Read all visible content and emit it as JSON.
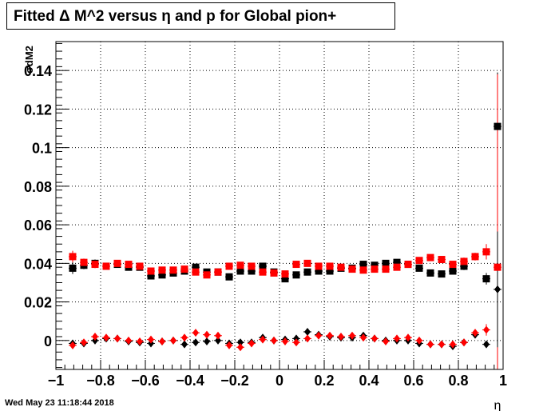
{
  "title": "Fitted Δ M^2 versus η and p for Global pion+",
  "timestamp": "Wed May 23 11:18:44 2018",
  "chart_data": {
    "type": "scatter",
    "title": "Fitted Δ M^2 versus η and p for Global pion+",
    "xlabel": "η",
    "ylabel": "σdM2",
    "xlim": [
      -1,
      1
    ],
    "ylim": [
      -0.015,
      0.155
    ],
    "grid": true,
    "x_ticks": [
      -1,
      -0.8,
      -0.6,
      -0.4,
      -0.2,
      0,
      0.2,
      0.4,
      0.6,
      0.8,
      1
    ],
    "x_tick_labels": [
      "−1",
      "−0.8",
      "−0.6",
      "−0.4",
      "−0.2",
      "0",
      "0.2",
      "0.4",
      "0.6",
      "0.8",
      "1"
    ],
    "y_ticks": [
      0,
      0.02,
      0.04,
      0.06,
      0.08,
      0.1,
      0.12,
      0.14
    ],
    "y_tick_labels": [
      "0",
      "0.02",
      "0.04",
      "0.06",
      "0.08",
      "0.1",
      "0.12",
      "0.14"
    ],
    "x": [
      -0.925,
      -0.875,
      -0.825,
      -0.775,
      -0.725,
      -0.675,
      -0.625,
      -0.575,
      -0.525,
      -0.475,
      -0.425,
      -0.375,
      -0.325,
      -0.275,
      -0.225,
      -0.175,
      -0.125,
      -0.075,
      -0.025,
      0.025,
      0.075,
      0.125,
      0.175,
      0.225,
      0.275,
      0.325,
      0.375,
      0.425,
      0.475,
      0.525,
      0.575,
      0.625,
      0.675,
      0.725,
      0.775,
      0.825,
      0.875,
      0.925,
      0.975
    ],
    "series": [
      {
        "marker": "square",
        "color": "#000000",
        "values": [
          0.0375,
          0.039,
          0.04,
          0.0385,
          0.0395,
          0.038,
          0.038,
          0.0335,
          0.034,
          0.035,
          0.036,
          0.038,
          0.0355,
          0.0355,
          0.033,
          0.036,
          0.036,
          0.0385,
          0.0355,
          0.032,
          0.034,
          0.0355,
          0.036,
          0.036,
          0.0375,
          0.0375,
          0.0395,
          0.039,
          0.04,
          0.0405,
          0.0395,
          0.0375,
          0.035,
          0.0345,
          0.036,
          0.0385,
          null,
          0.032,
          0.111
        ],
        "errors": [
          0.003,
          0.002,
          0.002,
          0.0015,
          0.0015,
          0.0015,
          0.0015,
          0.0015,
          0.0015,
          0.0015,
          0.0015,
          0.0015,
          0.0015,
          0.0015,
          0.0015,
          0.0015,
          0.0015,
          0.0015,
          0.0015,
          0.0015,
          0.0015,
          0.0015,
          0.0015,
          0.0015,
          0.0015,
          0.0015,
          0.0015,
          0.0015,
          0.0015,
          0.0015,
          0.0015,
          0.0015,
          0.0015,
          0.0015,
          0.0015,
          0.002,
          null,
          0.003,
          0.028
        ]
      },
      {
        "marker": "square",
        "color": "#ff0000",
        "values": [
          0.0435,
          0.0405,
          0.0395,
          0.0385,
          0.04,
          0.0395,
          0.0385,
          0.036,
          0.0365,
          0.0365,
          0.037,
          0.0355,
          0.034,
          0.0355,
          0.0385,
          0.039,
          0.0385,
          0.0355,
          0.035,
          0.0345,
          0.0395,
          0.04,
          0.0385,
          0.0385,
          0.038,
          0.037,
          0.0365,
          0.037,
          0.037,
          0.038,
          0.0395,
          0.0415,
          0.043,
          0.042,
          0.0395,
          0.041,
          0.0435,
          0.046,
          0.038
        ],
        "errors": [
          0.003,
          0.002,
          0.002,
          0.0015,
          0.0015,
          0.0015,
          0.0015,
          0.0015,
          0.0015,
          0.0015,
          0.0015,
          0.0015,
          0.0015,
          0.0015,
          0.0015,
          0.0015,
          0.0015,
          0.0015,
          0.0015,
          0.0015,
          0.0015,
          0.0015,
          0.0015,
          0.0015,
          0.0015,
          0.0015,
          0.0015,
          0.0015,
          0.0015,
          0.0015,
          0.0015,
          0.0015,
          0.0015,
          0.0015,
          0.0015,
          0.002,
          0.002,
          0.004,
          0.1
        ]
      },
      {
        "marker": "diamond",
        "color": "#000000",
        "values": [
          -0.0015,
          -0.0015,
          0.0,
          0.001,
          0.001,
          -0.0005,
          -0.001,
          -0.0015,
          -0.0005,
          0.0,
          -0.002,
          -0.001,
          -0.0005,
          0.0,
          -0.0015,
          -0.001,
          -0.001,
          0.0015,
          0.0,
          0.0005,
          0.001,
          0.0045,
          0.003,
          0.002,
          0.0015,
          0.0015,
          0.0025,
          0.001,
          0.0,
          0.0,
          0.0,
          -0.0015,
          -0.002,
          -0.002,
          -0.003,
          -0.001,
          0.003,
          -0.002,
          0.0265
        ],
        "errors": [
          0.001,
          0.001,
          0.001,
          0.001,
          0.001,
          0.001,
          0.001,
          0.001,
          0.001,
          0.001,
          0.001,
          0.001,
          0.001,
          0.001,
          0.001,
          0.001,
          0.001,
          0.001,
          0.001,
          0.001,
          0.001,
          0.001,
          0.001,
          0.001,
          0.001,
          0.001,
          0.001,
          0.001,
          0.001,
          0.001,
          0.001,
          0.001,
          0.001,
          0.001,
          0.001,
          0.001,
          0.001,
          0.001,
          0.03
        ]
      },
      {
        "marker": "diamond",
        "color": "#ff0000",
        "values": [
          -0.0025,
          -0.001,
          0.002,
          0.0015,
          0.001,
          0.0,
          -0.0005,
          0.0005,
          -0.0005,
          0.0,
          0.0015,
          0.004,
          0.003,
          0.0025,
          -0.0025,
          -0.0035,
          -0.0015,
          0.0005,
          0.0,
          -0.0005,
          -0.001,
          0.001,
          0.0025,
          0.0025,
          0.002,
          0.0025,
          0.0015,
          0.001,
          -0.0005,
          0.001,
          0.0015,
          0.0,
          -0.002,
          -0.002,
          -0.002,
          -0.001,
          0.004,
          0.0055,
          null
        ],
        "errors": [
          0.001,
          0.001,
          0.001,
          0.001,
          0.001,
          0.001,
          0.001,
          0.001,
          0.001,
          0.001,
          0.001,
          0.001,
          0.001,
          0.001,
          0.001,
          0.001,
          0.001,
          0.001,
          0.001,
          0.001,
          0.001,
          0.001,
          0.001,
          0.001,
          0.001,
          0.001,
          0.001,
          0.001,
          0.001,
          0.001,
          0.001,
          0.001,
          0.001,
          0.001,
          0.001,
          0.001,
          0.0015,
          0.003,
          null
        ]
      }
    ]
  }
}
